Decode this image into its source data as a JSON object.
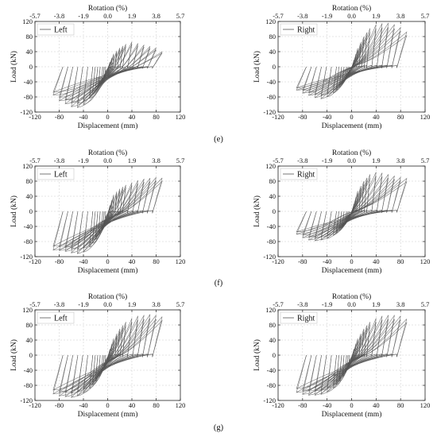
{
  "figure": {
    "row_captions": [
      "(e)",
      "(f)",
      "(g)"
    ]
  },
  "chart_data": [
    {
      "panel": "e-left",
      "type": "line",
      "legend": "Left",
      "legend_position": "top-left",
      "xlabel": "Displacement (mm)",
      "ylabel": "Load (kN)",
      "top_xlabel": "Rotation (%)",
      "xlim": [
        -120,
        120
      ],
      "ylim": [
        -120,
        120
      ],
      "xticks": [
        "-120",
        "-80",
        "-40",
        "0",
        "40",
        "80",
        "120"
      ],
      "yticks": [
        "120",
        "80",
        "40",
        "0",
        "-40",
        "-80",
        "-120"
      ],
      "top_ticks": [
        "-5.7",
        "-3.8",
        "-1.9",
        "0.0",
        "1.9",
        "3.8",
        "5.7"
      ],
      "grid": true,
      "envelope_positive": [
        [
          10,
          35
        ],
        [
          20,
          50
        ],
        [
          30,
          60
        ],
        [
          40,
          66
        ],
        [
          50,
          62
        ],
        [
          60,
          58
        ],
        [
          70,
          54
        ],
        [
          80,
          50
        ],
        [
          90,
          40
        ]
      ],
      "envelope_negative": [
        [
          -10,
          -40
        ],
        [
          -20,
          -62
        ],
        [
          -30,
          -84
        ],
        [
          -40,
          -100
        ],
        [
          -50,
          -108
        ],
        [
          -60,
          -106
        ],
        [
          -70,
          -98
        ],
        [
          -80,
          -90
        ],
        [
          -90,
          -75
        ]
      ]
    },
    {
      "panel": "e-right",
      "type": "line",
      "legend": "Right",
      "legend_position": "top-left",
      "xlabel": "Displacement (mm)",
      "ylabel": "Load (kN)",
      "top_xlabel": "Rotation (%)",
      "xlim": [
        -120,
        120
      ],
      "ylim": [
        -120,
        120
      ],
      "xticks": [
        "-120",
        "-80",
        "-40",
        "0",
        "40",
        "80",
        "120"
      ],
      "yticks": [
        "120",
        "80",
        "40",
        "0",
        "-40",
        "-80",
        "-120"
      ],
      "top_ticks": [
        "-5.7",
        "-3.8",
        "-1.9",
        "0.0",
        "1.9",
        "3.8",
        "5.7"
      ],
      "grid": true,
      "envelope_positive": [
        [
          10,
          50
        ],
        [
          20,
          80
        ],
        [
          30,
          102
        ],
        [
          40,
          112
        ],
        [
          50,
          115
        ],
        [
          60,
          116
        ],
        [
          70,
          112
        ],
        [
          80,
          104
        ],
        [
          90,
          92
        ]
      ],
      "envelope_negative": [
        [
          -10,
          -35
        ],
        [
          -20,
          -55
        ],
        [
          -30,
          -70
        ],
        [
          -40,
          -80
        ],
        [
          -50,
          -85
        ],
        [
          -60,
          -82
        ],
        [
          -70,
          -76
        ],
        [
          -80,
          -70
        ],
        [
          -90,
          -62
        ]
      ]
    },
    {
      "panel": "f-left",
      "type": "line",
      "legend": "Left",
      "legend_position": "top-left",
      "xlabel": "Displacement (mm)",
      "ylabel": "Load (kN)",
      "top_xlabel": "Rotation (%)",
      "xlim": [
        -120,
        120
      ],
      "ylim": [
        -120,
        120
      ],
      "xticks": [
        "-120",
        "-80",
        "-40",
        "0",
        "40",
        "80",
        "120"
      ],
      "yticks": [
        "120",
        "80",
        "40",
        "0",
        "-40",
        "-80",
        "-120"
      ],
      "top_ticks": [
        "-5.7",
        "-3.8",
        "-1.9",
        "0.0",
        "1.9",
        "3.8",
        "5.7"
      ],
      "grid": true,
      "envelope_positive": [
        [
          10,
          45
        ],
        [
          20,
          60
        ],
        [
          30,
          70
        ],
        [
          40,
          76
        ],
        [
          50,
          82
        ],
        [
          60,
          86
        ],
        [
          70,
          88
        ],
        [
          80,
          90
        ],
        [
          95,
          88
        ]
      ],
      "envelope_negative": [
        [
          -10,
          -50
        ],
        [
          -20,
          -75
        ],
        [
          -30,
          -95
        ],
        [
          -40,
          -108
        ],
        [
          -50,
          -112
        ],
        [
          -60,
          -110
        ],
        [
          -70,
          -106
        ],
        [
          -80,
          -104
        ],
        [
          -95,
          -102
        ]
      ]
    },
    {
      "panel": "f-right",
      "type": "line",
      "legend": "Right",
      "legend_position": "top-left",
      "xlabel": "Displacement (mm)",
      "ylabel": "Load (kN)",
      "top_xlabel": "Rotation (%)",
      "xlim": [
        -120,
        120
      ],
      "ylim": [
        -120,
        120
      ],
      "xticks": [
        "-120",
        "-80",
        "-40",
        "0",
        "40",
        "80",
        "120"
      ],
      "yticks": [
        "120",
        "80",
        "40",
        "0",
        "-40",
        "-80",
        "-120"
      ],
      "top_ticks": [
        "-5.7",
        "-3.8",
        "-1.9",
        "0.0",
        "1.9",
        "3.8",
        "5.7"
      ],
      "grid": true,
      "envelope_positive": [
        [
          10,
          55
        ],
        [
          20,
          80
        ],
        [
          30,
          98
        ],
        [
          40,
          104
        ],
        [
          50,
          102
        ],
        [
          60,
          98
        ],
        [
          70,
          94
        ],
        [
          80,
          90
        ],
        [
          95,
          86
        ]
      ],
      "envelope_negative": [
        [
          -10,
          -35
        ],
        [
          -20,
          -52
        ],
        [
          -30,
          -64
        ],
        [
          -40,
          -72
        ],
        [
          -50,
          -76
        ],
        [
          -60,
          -78
        ],
        [
          -70,
          -76
        ],
        [
          -80,
          -70
        ],
        [
          -95,
          -56
        ]
      ]
    },
    {
      "panel": "g-left",
      "type": "line",
      "legend": "Left",
      "legend_position": "top-left",
      "xlabel": "Displacement (mm)",
      "ylabel": "Load (kN)",
      "top_xlabel": "Rotation (%)",
      "xlim": [
        -120,
        120
      ],
      "ylim": [
        -120,
        120
      ],
      "xticks": [
        "-120",
        "-80",
        "-40",
        "0",
        "40",
        "80",
        "120"
      ],
      "yticks": [
        "120",
        "80",
        "40",
        "0",
        "-40",
        "-80",
        "-120"
      ],
      "top_ticks": [
        "-5.7",
        "-3.8",
        "-1.9",
        "0.0",
        "1.9",
        "3.8",
        "5.7"
      ],
      "grid": true,
      "envelope_positive": [
        [
          10,
          45
        ],
        [
          20,
          70
        ],
        [
          30,
          88
        ],
        [
          40,
          98
        ],
        [
          50,
          104
        ],
        [
          60,
          106
        ],
        [
          70,
          108
        ],
        [
          80,
          106
        ],
        [
          95,
          100
        ]
      ],
      "envelope_negative": [
        [
          -10,
          -45
        ],
        [
          -20,
          -70
        ],
        [
          -30,
          -88
        ],
        [
          -40,
          -100
        ],
        [
          -50,
          -108
        ],
        [
          -60,
          -112
        ],
        [
          -70,
          -110
        ],
        [
          -80,
          -108
        ],
        [
          -95,
          -100
        ]
      ]
    },
    {
      "panel": "g-right",
      "type": "line",
      "legend": "Right",
      "legend_position": "top-left",
      "xlabel": "Displacement (mm)",
      "ylabel": "Load (kN)",
      "top_xlabel": "Rotation (%)",
      "xlim": [
        -120,
        120
      ],
      "ylim": [
        -120,
        120
      ],
      "xticks": [
        "-120",
        "-80",
        "-40",
        "0",
        "40",
        "80",
        "120"
      ],
      "yticks": [
        "120",
        "80",
        "40",
        "0",
        "-40",
        "-80",
        "-120"
      ],
      "top_ticks": [
        "-5.7",
        "-3.8",
        "-1.9",
        "0.0",
        "1.9",
        "3.8",
        "5.7"
      ],
      "grid": true,
      "envelope_positive": [
        [
          10,
          45
        ],
        [
          20,
          70
        ],
        [
          30,
          88
        ],
        [
          40,
          98
        ],
        [
          50,
          104
        ],
        [
          60,
          106
        ],
        [
          70,
          106
        ],
        [
          80,
          104
        ],
        [
          95,
          92
        ]
      ],
      "envelope_negative": [
        [
          -10,
          -45
        ],
        [
          -20,
          -70
        ],
        [
          -30,
          -88
        ],
        [
          -40,
          -98
        ],
        [
          -50,
          -104
        ],
        [
          -60,
          -106
        ],
        [
          -70,
          -106
        ],
        [
          -80,
          -104
        ],
        [
          -95,
          -96
        ]
      ]
    }
  ]
}
